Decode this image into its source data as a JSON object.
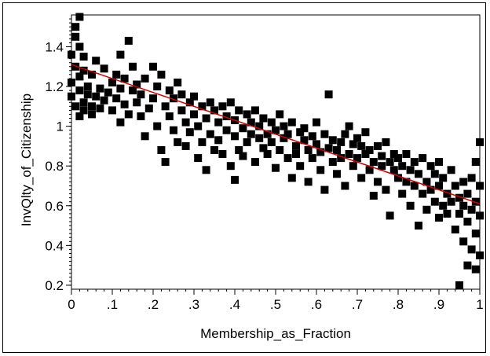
{
  "chart_data": {
    "type": "scatter",
    "title": "",
    "xlabel": "Membership_as_Fraction",
    "ylabel": "InvQlty_of_Citizenship",
    "xlim": [
      0,
      1
    ],
    "ylim": [
      0.18,
      1.56
    ],
    "x_ticks": [
      0,
      0.1,
      0.2,
      0.3,
      0.4,
      0.5,
      0.6,
      0.7,
      0.8,
      0.9,
      1
    ],
    "x_tick_labels": [
      "0",
      ".1",
      ".2",
      ".3",
      ".4",
      ".5",
      ".6",
      ".7",
      ".8",
      ".9",
      "1"
    ],
    "y_ticks": [
      0.2,
      0.4,
      0.6,
      0.8,
      1.0,
      1.2,
      1.4
    ],
    "y_tick_labels": [
      "0.2",
      "0.4",
      "0.6",
      "0.8",
      "1",
      "1.2",
      "1.4"
    ],
    "grid": false,
    "legend": "none",
    "marker_color": "#000000",
    "fit_line": {
      "color": "#cc0000",
      "intercept": 1.31,
      "slope": -0.7
    },
    "series": [
      {
        "points": [
          [
            0.0,
            1.36
          ],
          [
            0.0,
            1.22
          ],
          [
            0.0,
            1.15
          ],
          [
            0.01,
            1.3
          ],
          [
            0.01,
            1.1
          ],
          [
            0.01,
            1.5
          ],
          [
            0.01,
            1.45
          ],
          [
            0.02,
            1.55
          ],
          [
            0.02,
            1.4
          ],
          [
            0.02,
            1.25
          ],
          [
            0.02,
            1.05
          ],
          [
            0.02,
            1.18
          ],
          [
            0.03,
            1.12
          ],
          [
            0.03,
            1.35
          ],
          [
            0.03,
            1.28
          ],
          [
            0.03,
            1.08
          ],
          [
            0.04,
            1.2
          ],
          [
            0.04,
            1.16
          ],
          [
            0.05,
            1.1
          ],
          [
            0.05,
            1.26
          ],
          [
            0.05,
            1.06
          ],
          [
            0.06,
            1.33
          ],
          [
            0.06,
            1.15
          ],
          [
            0.07,
            1.19
          ],
          [
            0.07,
            1.09
          ],
          [
            0.08,
            1.29
          ],
          [
            0.08,
            1.13
          ],
          [
            0.09,
            1.17
          ],
          [
            0.1,
            1.22
          ],
          [
            0.1,
            1.08
          ],
          [
            0.11,
            1.26
          ],
          [
            0.11,
            1.14
          ],
          [
            0.12,
            1.36
          ],
          [
            0.12,
            1.02
          ],
          [
            0.12,
            1.19
          ],
          [
            0.13,
            1.11
          ],
          [
            0.13,
            1.24
          ],
          [
            0.14,
            1.43
          ],
          [
            0.14,
            1.06
          ],
          [
            0.15,
            1.18
          ],
          [
            0.15,
            1.3
          ],
          [
            0.16,
            1.12
          ],
          [
            0.16,
            1.21
          ],
          [
            0.17,
            1.05
          ],
          [
            0.17,
            1.16
          ],
          [
            0.18,
            0.95
          ],
          [
            0.18,
            1.24
          ],
          [
            0.19,
            1.09
          ],
          [
            0.2,
            1.3
          ],
          [
            0.2,
            1.14
          ],
          [
            0.21,
            1.0
          ],
          [
            0.21,
            1.2
          ],
          [
            0.22,
            0.88
          ],
          [
            0.22,
            1.26
          ],
          [
            0.23,
            1.1
          ],
          [
            0.23,
            0.82
          ],
          [
            0.24,
            1.18
          ],
          [
            0.24,
            1.05
          ],
          [
            0.25,
            0.98
          ],
          [
            0.25,
            1.14
          ],
          [
            0.26,
            1.22
          ],
          [
            0.26,
            0.92
          ],
          [
            0.27,
            1.08
          ],
          [
            0.27,
            1.16
          ],
          [
            0.28,
            1.02
          ],
          [
            0.28,
            0.9
          ],
          [
            0.29,
            1.12
          ],
          [
            0.29,
            0.97
          ],
          [
            0.3,
            1.06
          ],
          [
            0.3,
            1.15
          ],
          [
            0.31,
            0.84
          ],
          [
            0.31,
            1.0
          ],
          [
            0.32,
            1.1
          ],
          [
            0.32,
            0.92
          ],
          [
            0.33,
            1.04
          ],
          [
            0.33,
            0.78
          ],
          [
            0.34,
            1.12
          ],
          [
            0.34,
            0.96
          ],
          [
            0.35,
            0.88
          ],
          [
            0.35,
            1.08
          ],
          [
            0.36,
            1.02
          ],
          [
            0.36,
            0.93
          ],
          [
            0.37,
            1.1
          ],
          [
            0.37,
            0.86
          ],
          [
            0.38,
            1.05
          ],
          [
            0.38,
            0.98
          ],
          [
            0.39,
            0.8
          ],
          [
            0.39,
            1.12
          ],
          [
            0.4,
            0.95
          ],
          [
            0.4,
            0.73
          ],
          [
            0.4,
            1.03
          ],
          [
            0.41,
            0.88
          ],
          [
            0.41,
            1.08
          ],
          [
            0.42,
            0.99
          ],
          [
            0.42,
            0.85
          ],
          [
            0.43,
            1.06
          ],
          [
            0.43,
            0.92
          ],
          [
            0.44,
            1.02
          ],
          [
            0.44,
            0.96
          ],
          [
            0.45,
            0.82
          ],
          [
            0.45,
            1.08
          ],
          [
            0.46,
            0.94
          ],
          [
            0.46,
            1.0
          ],
          [
            0.47,
            0.89
          ],
          [
            0.47,
            1.04
          ],
          [
            0.48,
            0.96
          ],
          [
            0.48,
            0.86
          ],
          [
            0.49,
            1.02
          ],
          [
            0.49,
            0.92
          ],
          [
            0.5,
            0.79
          ],
          [
            0.5,
            0.98
          ],
          [
            0.51,
            1.06
          ],
          [
            0.51,
            0.88
          ],
          [
            0.52,
            0.94
          ],
          [
            0.52,
            1.0
          ],
          [
            0.53,
            0.84
          ],
          [
            0.53,
            0.96
          ],
          [
            0.54,
            0.74
          ],
          [
            0.54,
            1.02
          ],
          [
            0.55,
            0.9
          ],
          [
            0.55,
            0.86
          ],
          [
            0.56,
            0.97
          ],
          [
            0.56,
            0.8
          ],
          [
            0.57,
            0.93
          ],
          [
            0.57,
            0.99
          ],
          [
            0.58,
            0.88
          ],
          [
            0.58,
            0.72
          ],
          [
            0.59,
            0.95
          ],
          [
            0.59,
            0.84
          ],
          [
            0.6,
            0.91
          ],
          [
            0.6,
            1.02
          ],
          [
            0.61,
            0.78
          ],
          [
            0.61,
            0.87
          ],
          [
            0.62,
            0.96
          ],
          [
            0.62,
            0.68
          ],
          [
            0.63,
            1.16
          ],
          [
            0.63,
            0.89
          ],
          [
            0.64,
            0.82
          ],
          [
            0.64,
            0.93
          ],
          [
            0.65,
            0.88
          ],
          [
            0.65,
            0.76
          ],
          [
            0.66,
            0.92
          ],
          [
            0.66,
            0.84
          ],
          [
            0.67,
            0.96
          ],
          [
            0.67,
            0.7
          ],
          [
            0.68,
            1.0
          ],
          [
            0.68,
            0.86
          ],
          [
            0.69,
            0.91
          ],
          [
            0.69,
            0.8
          ],
          [
            0.7,
            0.94
          ],
          [
            0.7,
            0.84
          ],
          [
            0.71,
            0.74
          ],
          [
            0.71,
            0.9
          ],
          [
            0.72,
            0.86
          ],
          [
            0.72,
            0.97
          ],
          [
            0.73,
            0.78
          ],
          [
            0.73,
            0.88
          ],
          [
            0.74,
            0.65
          ],
          [
            0.74,
            0.82
          ],
          [
            0.75,
            0.9
          ],
          [
            0.75,
            0.72
          ],
          [
            0.76,
            0.85
          ],
          [
            0.76,
            0.8
          ],
          [
            0.77,
            0.92
          ],
          [
            0.77,
            0.68
          ],
          [
            0.78,
            0.82
          ],
          [
            0.78,
            0.55
          ],
          [
            0.79,
            0.78
          ],
          [
            0.79,
            0.86
          ],
          [
            0.8,
            0.74
          ],
          [
            0.8,
            0.84
          ],
          [
            0.81,
            0.66
          ],
          [
            0.81,
            0.8
          ],
          [
            0.82,
            0.72
          ],
          [
            0.82,
            0.86
          ],
          [
            0.83,
            0.78
          ],
          [
            0.83,
            0.6
          ],
          [
            0.84,
            0.7
          ],
          [
            0.84,
            0.82
          ],
          [
            0.85,
            0.5
          ],
          [
            0.85,
            0.76
          ],
          [
            0.86,
            0.66
          ],
          [
            0.86,
            0.84
          ],
          [
            0.87,
            0.72
          ],
          [
            0.87,
            0.58
          ],
          [
            0.88,
            0.8
          ],
          [
            0.88,
            0.68
          ],
          [
            0.89,
            0.62
          ],
          [
            0.89,
            0.76
          ],
          [
            0.9,
            0.54
          ],
          [
            0.9,
            0.7
          ],
          [
            0.9,
            0.82
          ],
          [
            0.91,
            0.6
          ],
          [
            0.91,
            0.74
          ],
          [
            0.92,
            0.66
          ],
          [
            0.92,
            0.56
          ],
          [
            0.93,
            0.78
          ],
          [
            0.93,
            0.62
          ],
          [
            0.94,
            0.7
          ],
          [
            0.94,
            0.48
          ],
          [
            0.95,
            0.64
          ],
          [
            0.95,
            0.2
          ],
          [
            0.95,
            0.56
          ],
          [
            0.96,
            0.72
          ],
          [
            0.96,
            0.42
          ],
          [
            0.96,
            0.6
          ],
          [
            0.97,
            0.3
          ],
          [
            0.97,
            0.66
          ],
          [
            0.97,
            0.52
          ],
          [
            0.98,
            0.38
          ],
          [
            0.98,
            0.58
          ],
          [
            0.98,
            0.74
          ],
          [
            0.99,
            0.46
          ],
          [
            0.99,
            0.62
          ],
          [
            0.99,
            0.82
          ],
          [
            1.0,
            0.35
          ],
          [
            1.0,
            0.55
          ],
          [
            1.0,
            0.7
          ],
          [
            1.0,
            0.92
          ],
          [
            0.99,
            0.28
          ]
        ]
      }
    ]
  }
}
